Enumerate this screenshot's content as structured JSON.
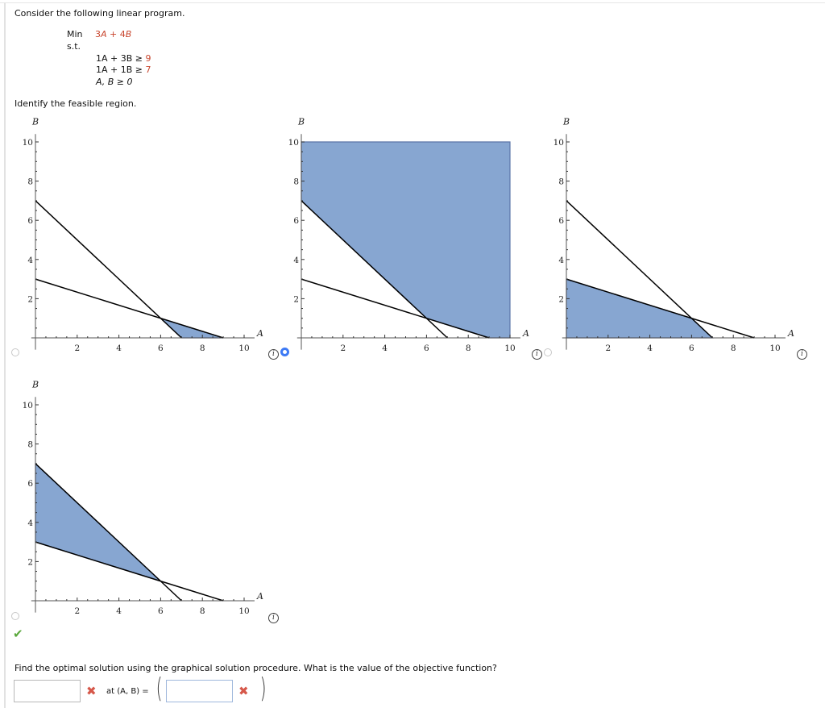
{
  "problem": {
    "intro": "Consider the following linear program.",
    "objective": {
      "label": "Min",
      "coef_a": "3",
      "var_a": "A",
      "plus": "+",
      "coef_b": "4",
      "var_b": "B"
    },
    "st_label": "s.t.",
    "constraints": [
      {
        "lhs_a": "1A",
        "plus": "+",
        "lhs_b": "3B",
        "op": "≥",
        "rhs": "9"
      },
      {
        "lhs_a": "1A",
        "plus": "+",
        "lhs_b": "1B",
        "op": "≥",
        "rhs": "7"
      }
    ],
    "nonneg": "A, B ≥ 0",
    "question1": "Identify the feasible region.",
    "question2": "Find the optimal solution using the graphical solution procedure. What is the value of the objective function?"
  },
  "answer": {
    "objective_value": "",
    "at_label": "at (A, B) =",
    "point_value": "",
    "objective_status": "incorrect",
    "point_status": "incorrect"
  },
  "options": [
    {
      "id": "option-1",
      "selected": false,
      "status": ""
    },
    {
      "id": "option-2",
      "selected": true,
      "status": ""
    },
    {
      "id": "option-3",
      "selected": false,
      "status": ""
    },
    {
      "id": "option-4",
      "selected": false,
      "status": "correct"
    }
  ],
  "icons": {
    "info": "i",
    "check": "✔",
    "x": "✖"
  },
  "colors": {
    "fill": "#87a6d1",
    "fill_stroke": "#5b75a8",
    "line": "#000000",
    "accent_radio": "#3d7af5",
    "red": "#c8452d",
    "check": "#5aa83c"
  },
  "chart_data": [
    {
      "type": "area",
      "title": "Option 1",
      "xlabel": "A",
      "ylabel": "B",
      "xlim": [
        0,
        10
      ],
      "ylim": [
        0,
        10
      ],
      "xticks": [
        "2",
        "4",
        "6",
        "8",
        "10"
      ],
      "yticks": [
        "2",
        "4",
        "6",
        "8",
        "10"
      ],
      "lines": [
        {
          "name": "1A + 3B = 9",
          "points": [
            [
              0,
              3
            ],
            [
              9,
              0
            ]
          ]
        },
        {
          "name": "1A + 1B = 7",
          "points": [
            [
              0,
              7
            ],
            [
              7,
              0
            ]
          ]
        }
      ],
      "shaded_region": [
        [
          6,
          1
        ],
        [
          9,
          0
        ],
        [
          7,
          0
        ]
      ]
    },
    {
      "type": "area",
      "title": "Option 2",
      "xlabel": "A",
      "ylabel": "B",
      "xlim": [
        0,
        10
      ],
      "ylim": [
        0,
        10
      ],
      "xticks": [
        "2",
        "4",
        "6",
        "8",
        "10"
      ],
      "yticks": [
        "2",
        "4",
        "6",
        "8",
        "10"
      ],
      "lines": [
        {
          "name": "1A + 3B = 9",
          "points": [
            [
              0,
              3
            ],
            [
              9,
              0
            ]
          ]
        },
        {
          "name": "1A + 1B = 7",
          "points": [
            [
              0,
              7
            ],
            [
              7,
              0
            ]
          ]
        }
      ],
      "shaded_region": [
        [
          0,
          10
        ],
        [
          10,
          10
        ],
        [
          10,
          0
        ],
        [
          9,
          0
        ],
        [
          6,
          1
        ],
        [
          0,
          7
        ]
      ]
    },
    {
      "type": "area",
      "title": "Option 3",
      "xlabel": "A",
      "ylabel": "B",
      "xlim": [
        0,
        10
      ],
      "ylim": [
        0,
        10
      ],
      "xticks": [
        "2",
        "4",
        "6",
        "8",
        "10"
      ],
      "yticks": [
        "2",
        "4",
        "6",
        "8",
        "10"
      ],
      "lines": [
        {
          "name": "1A + 3B = 9",
          "points": [
            [
              0,
              3
            ],
            [
              9,
              0
            ]
          ]
        },
        {
          "name": "1A + 1B = 7",
          "points": [
            [
              0,
              7
            ],
            [
              7,
              0
            ]
          ]
        }
      ],
      "shaded_region": [
        [
          0,
          0
        ],
        [
          0,
          3
        ],
        [
          6,
          1
        ],
        [
          7,
          0
        ]
      ]
    },
    {
      "type": "area",
      "title": "Option 4",
      "xlabel": "A",
      "ylabel": "B",
      "xlim": [
        0,
        10
      ],
      "ylim": [
        0,
        10
      ],
      "xticks": [
        "2",
        "4",
        "6",
        "8",
        "10"
      ],
      "yticks": [
        "2",
        "4",
        "6",
        "8",
        "10"
      ],
      "lines": [
        {
          "name": "1A + 3B = 9",
          "points": [
            [
              0,
              3
            ],
            [
              9,
              0
            ]
          ]
        },
        {
          "name": "1A + 1B = 7",
          "points": [
            [
              0,
              7
            ],
            [
              7,
              0
            ]
          ]
        }
      ],
      "shaded_region": [
        [
          0,
          3
        ],
        [
          0,
          7
        ],
        [
          6,
          1
        ]
      ]
    }
  ]
}
